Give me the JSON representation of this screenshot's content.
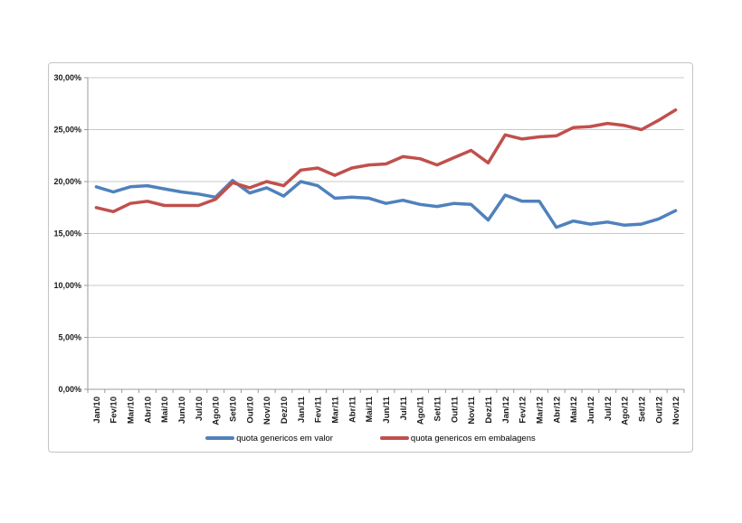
{
  "chart_data": {
    "type": "line",
    "title": "",
    "xlabel": "",
    "ylabel": "",
    "unit": "%",
    "ylim": [
      0,
      30
    ],
    "ytick_step": 5,
    "ytick_labels": [
      "0,00%",
      "5,00%",
      "10,00%",
      "15,00%",
      "20,00%",
      "25,00%",
      "30,00%"
    ],
    "grid": true,
    "legend_position": "bottom",
    "categories": [
      "Jan/10",
      "Fev/10",
      "Mar/10",
      "Abr/10",
      "Mai/10",
      "Jun/10",
      "Jul/10",
      "Ago/10",
      "Set/10",
      "Out/10",
      "Nov/10",
      "Dez/10",
      "Jan/11",
      "Fev/11",
      "Mar/11",
      "Abr/11",
      "Mai/11",
      "Jun/11",
      "Jul/11",
      "Ago/11",
      "Set/11",
      "Out/11",
      "Nov/11",
      "Dez/11",
      "Jan/12",
      "Fev/12",
      "Mar/12",
      "Abr/12",
      "Mai/12",
      "Jun/12",
      "Jul/12",
      "Ago/12",
      "Set/12",
      "Out/12",
      "Nov/12"
    ],
    "series": [
      {
        "name": "quota genericos em valor",
        "color": "#4F81BD",
        "values": [
          19.5,
          19.0,
          19.5,
          19.6,
          19.3,
          19.0,
          18.8,
          18.5,
          20.1,
          18.9,
          19.4,
          18.6,
          20.0,
          19.6,
          18.4,
          18.5,
          18.4,
          17.9,
          18.2,
          17.8,
          17.6,
          17.9,
          17.8,
          16.3,
          18.7,
          18.1,
          18.1,
          15.6,
          16.2,
          15.9,
          16.1,
          15.8,
          15.9,
          16.4,
          17.2
        ]
      },
      {
        "name": "quota genericos em embalagens",
        "color": "#C0504D",
        "values": [
          17.5,
          17.1,
          17.9,
          18.1,
          17.7,
          17.7,
          17.7,
          18.3,
          19.9,
          19.4,
          20.0,
          19.6,
          21.1,
          21.3,
          20.6,
          21.3,
          21.6,
          21.7,
          22.4,
          22.2,
          21.6,
          22.3,
          23.0,
          21.8,
          24.5,
          24.1,
          24.3,
          24.4,
          25.2,
          25.3,
          25.6,
          25.4,
          25.0,
          25.9,
          26.9
        ]
      }
    ]
  },
  "colors": {
    "grid": "#c8c8c8",
    "axis": "#9b9b9b",
    "frame_border": "#c3c3c3",
    "background": "#ffffff",
    "label_text": "#1a1a1a"
  }
}
